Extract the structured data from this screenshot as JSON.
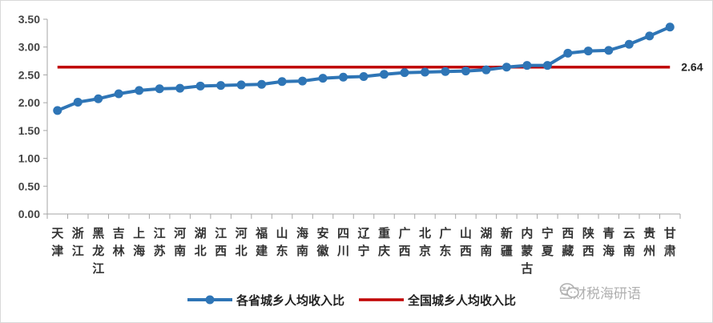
{
  "chart_data": {
    "type": "line",
    "categories": [
      [
        "天",
        "津"
      ],
      [
        "浙",
        "江"
      ],
      [
        "黑",
        "龙",
        "江"
      ],
      [
        "吉",
        "林"
      ],
      [
        "上",
        "海"
      ],
      [
        "江",
        "苏"
      ],
      [
        "河",
        "南"
      ],
      [
        "湖",
        "北"
      ],
      [
        "江",
        "西"
      ],
      [
        "河",
        "北"
      ],
      [
        "福",
        "建"
      ],
      [
        "山",
        "东"
      ],
      [
        "海",
        "南"
      ],
      [
        "安",
        "徽"
      ],
      [
        "四",
        "川"
      ],
      [
        "辽",
        "宁"
      ],
      [
        "重",
        "庆"
      ],
      [
        "广",
        "西"
      ],
      [
        "北",
        "京"
      ],
      [
        "广",
        "东"
      ],
      [
        "山",
        "西"
      ],
      [
        "湖",
        "南"
      ],
      [
        "新",
        "疆"
      ],
      [
        "内",
        "蒙",
        "古"
      ],
      [
        "宁",
        "夏"
      ],
      [
        "西",
        "藏"
      ],
      [
        "陕",
        "西"
      ],
      [
        "青",
        "海"
      ],
      [
        "云",
        "南"
      ],
      [
        "贵",
        "州"
      ],
      [
        "甘",
        "肃"
      ]
    ],
    "series": [
      {
        "name": "各省城乡人均收入比",
        "color": "#2e75b6",
        "values": [
          1.86,
          2.01,
          2.07,
          2.16,
          2.22,
          2.25,
          2.26,
          2.3,
          2.31,
          2.32,
          2.33,
          2.38,
          2.39,
          2.44,
          2.46,
          2.47,
          2.51,
          2.54,
          2.55,
          2.56,
          2.57,
          2.59,
          2.64,
          2.67,
          2.67,
          2.89,
          2.93,
          2.94,
          3.05,
          3.2,
          3.36
        ]
      },
      {
        "name": "全国城乡人均收入比",
        "color": "#c00000",
        "value": 2.64,
        "value_label": "2.64"
      }
    ],
    "ylim": [
      0,
      3.5
    ],
    "yticks": [
      "0.00",
      "0.50",
      "1.00",
      "1.50",
      "2.00",
      "2.50",
      "3.00",
      "3.50"
    ],
    "grid": false,
    "legend": "bottom"
  },
  "watermark": {
    "text": "兰财税海研语",
    "icon": "wechat-icon"
  }
}
